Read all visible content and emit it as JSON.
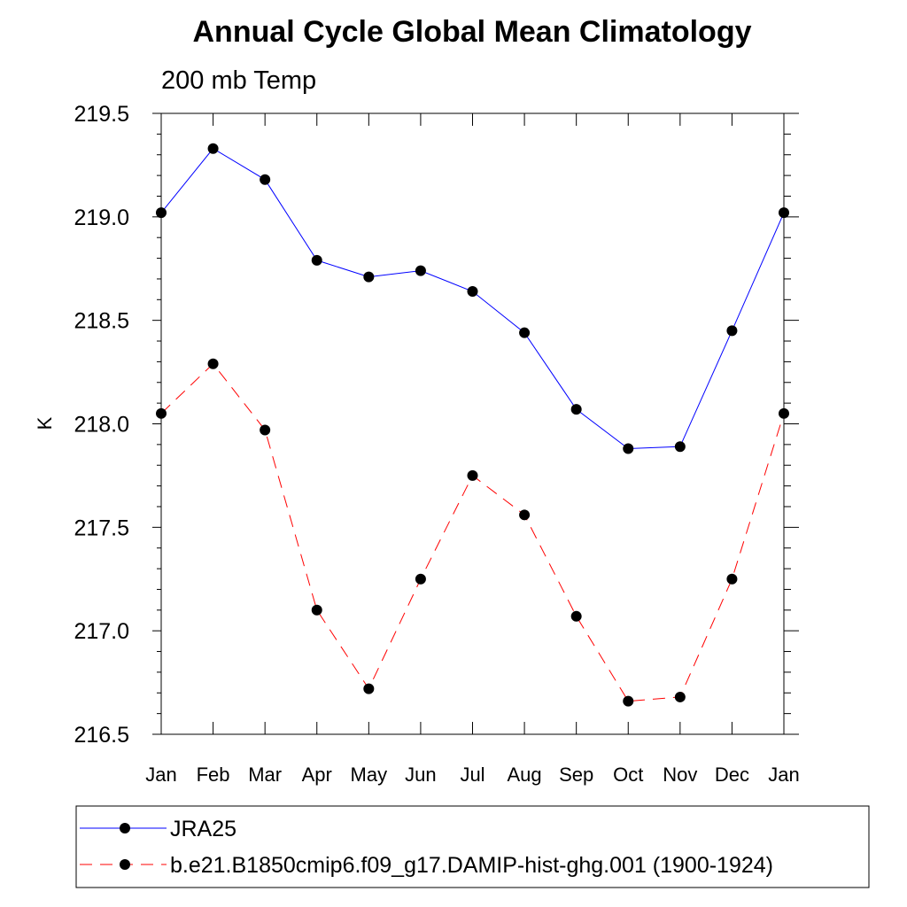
{
  "chart_data": {
    "type": "line",
    "title": "Annual Cycle Global Mean Climatology",
    "subtitle": "200 mb Temp",
    "xlabel": "",
    "ylabel": "K",
    "categories": [
      "Jan",
      "Feb",
      "Mar",
      "Apr",
      "May",
      "Jun",
      "Jul",
      "Aug",
      "Sep",
      "Oct",
      "Nov",
      "Dec",
      "Jan"
    ],
    "ylim": [
      216.5,
      219.5
    ],
    "yticks": [
      "216.5",
      "217.0",
      "217.5",
      "218.0",
      "218.5",
      "219.0",
      "219.5"
    ],
    "ytick_values": [
      216.5,
      217.0,
      217.5,
      218.0,
      218.5,
      219.0,
      219.5
    ],
    "minor_tick_step": 0.1,
    "grid": false,
    "legend_position": "bottom",
    "series": [
      {
        "name": "JRA25",
        "color": "#0000ff",
        "line_style": "solid",
        "marker": "filled-circle",
        "values": [
          219.02,
          219.33,
          219.18,
          218.79,
          218.71,
          218.74,
          218.64,
          218.44,
          218.07,
          217.88,
          217.89,
          218.45,
          219.02
        ]
      },
      {
        "name": "b.e21.B1850cmip6.f09_g17.DAMIP-hist-ghg.001 (1900-1924)",
        "color": "#ff0000",
        "line_style": "dashed",
        "marker": "filled-circle",
        "values": [
          218.05,
          218.29,
          217.97,
          217.1,
          216.72,
          217.25,
          217.75,
          217.56,
          217.07,
          216.66,
          216.68,
          217.25,
          218.05
        ]
      }
    ]
  }
}
